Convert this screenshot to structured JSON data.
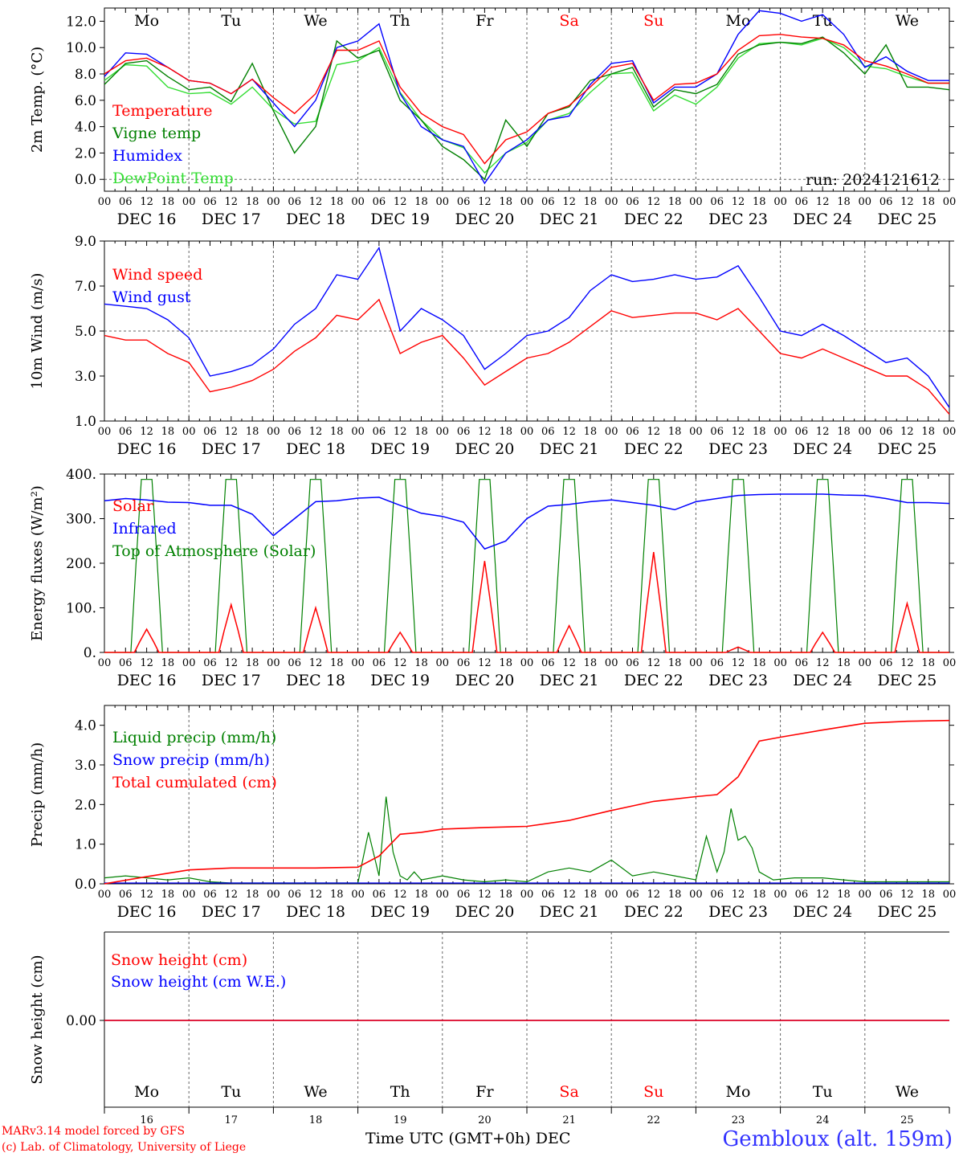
{
  "days": [
    "DEC 16",
    "DEC 17",
    "DEC 18",
    "DEC 19",
    "DEC 20",
    "DEC 21",
    "DEC 22",
    "DEC 23",
    "DEC 24",
    "DEC 25"
  ],
  "weekdays": [
    "Mo",
    "Tu",
    "We",
    "Th",
    "Fr",
    "Sa",
    "Su",
    "Mo",
    "Tu",
    "We"
  ],
  "weekday_colors": [
    "#000000",
    "#000000",
    "#000000",
    "#000000",
    "#000000",
    "#ff0000",
    "#ff0000",
    "#000000",
    "#000000",
    "#000000"
  ],
  "day_numbers": [
    "16",
    "17",
    "18",
    "19",
    "20",
    "21",
    "22",
    "23",
    "24",
    "25"
  ],
  "hour_ticks": [
    "00",
    "06",
    "12",
    "18"
  ],
  "hour_end": "00",
  "footer": {
    "model": "MARv3.14 model forced by GFS",
    "lab": "(c) Lab. of Climatology, University of Liege",
    "xlabel": "Time UTC (GMT+0h) DEC",
    "station": "Gembloux (alt. 159m)"
  },
  "colors": {
    "red": "#ff0000",
    "green": "#008000",
    "blue": "#0000ff",
    "lightgreen": "#33dd33",
    "axis": "#000000",
    "grid": "#666666"
  },
  "chart_data": [
    {
      "type": "line",
      "ylabel": "2m Temp. (°C)",
      "ylim": [
        -0.9,
        13.0
      ],
      "yticks": [
        0.0,
        2.0,
        4.0,
        6.0,
        8.0,
        10.0,
        12.0
      ],
      "ytick_labels": [
        "0.0",
        "2.0",
        "4.0",
        "6.0",
        "8.0",
        "10.0",
        "12.0"
      ],
      "hline": 0.0,
      "annotation": "run: 2024121612",
      "x_hours": [
        0,
        6,
        12,
        18,
        24,
        30,
        36,
        42,
        48,
        54,
        60,
        66,
        72,
        78,
        84,
        90,
        96,
        102,
        108,
        114,
        120,
        126,
        132,
        138,
        144,
        150,
        156,
        162,
        168,
        174,
        180,
        186,
        192,
        198,
        204,
        210,
        216,
        222,
        228,
        234,
        240
      ],
      "series": [
        {
          "name": "Temperature",
          "color": "red",
          "values": [
            8.0,
            9.0,
            9.2,
            8.5,
            7.5,
            7.3,
            6.5,
            7.6,
            6.2,
            5.0,
            6.5,
            9.8,
            9.8,
            10.5,
            7.0,
            5.0,
            4.0,
            3.4,
            1.2,
            3.0,
            3.6,
            5.0,
            5.6,
            7.0,
            8.5,
            8.8,
            6.0,
            7.2,
            7.3,
            8.0,
            9.8,
            10.9,
            11.0,
            10.8,
            10.7,
            10.2,
            9.0,
            8.6,
            8.0,
            7.3,
            7.3
          ]
        },
        {
          "name": "Vigne temp",
          "color": "green",
          "values": [
            7.2,
            8.8,
            9.0,
            7.8,
            6.8,
            7.0,
            5.9,
            8.8,
            5.2,
            2.0,
            4.0,
            10.5,
            9.2,
            9.8,
            6.0,
            4.5,
            2.5,
            1.5,
            0.0,
            4.5,
            2.5,
            5.0,
            5.5,
            7.5,
            8.0,
            8.5,
            5.5,
            6.8,
            6.5,
            7.2,
            9.5,
            10.2,
            10.4,
            10.3,
            10.8,
            9.6,
            8.0,
            10.2,
            7.0,
            7.0,
            6.8
          ]
        },
        {
          "name": "Humidex",
          "color": "blue",
          "values": [
            7.8,
            9.6,
            9.5,
            8.5,
            7.5,
            7.3,
            6.5,
            7.6,
            5.8,
            4.0,
            6.0,
            10.0,
            10.5,
            11.8,
            6.5,
            4.0,
            3.0,
            2.5,
            -0.3,
            2.0,
            3.0,
            4.5,
            4.8,
            7.2,
            8.8,
            9.0,
            5.8,
            7.0,
            7.0,
            8.0,
            11.0,
            12.8,
            12.6,
            12.0,
            12.5,
            11.0,
            8.5,
            9.3,
            8.2,
            7.5,
            7.5
          ]
        },
        {
          "name": "DewPoint Temp",
          "color": "lightgreen",
          "values": [
            7.5,
            8.7,
            8.6,
            7.0,
            6.5,
            6.6,
            5.7,
            7.0,
            5.3,
            4.2,
            4.4,
            8.7,
            9.0,
            10.0,
            6.6,
            4.5,
            3.0,
            2.4,
            0.5,
            2.0,
            2.8,
            4.5,
            5.0,
            6.6,
            8.0,
            8.1,
            5.2,
            6.4,
            5.7,
            7.0,
            9.2,
            10.3,
            10.4,
            10.2,
            10.7,
            10.0,
            8.6,
            8.4,
            7.8,
            7.3,
            7.3
          ]
        }
      ]
    },
    {
      "type": "line",
      "ylabel": "10m Wind (m/s)",
      "ylim": [
        1.0,
        9.0
      ],
      "yticks": [
        1.0,
        3.0,
        5.0,
        7.0,
        9.0
      ],
      "ytick_labels": [
        "1.0",
        "3.0",
        "5.0",
        "7.0",
        "9.0"
      ],
      "hline": 5.0,
      "x_hours": [
        0,
        6,
        12,
        18,
        24,
        30,
        36,
        42,
        48,
        54,
        60,
        66,
        72,
        78,
        84,
        90,
        96,
        102,
        108,
        114,
        120,
        126,
        132,
        138,
        144,
        150,
        156,
        162,
        168,
        174,
        180,
        186,
        192,
        198,
        204,
        210,
        216,
        222,
        228,
        234,
        240
      ],
      "series": [
        {
          "name": "Wind speed",
          "color": "red",
          "values": [
            4.8,
            4.6,
            4.6,
            4.0,
            3.6,
            2.3,
            2.5,
            2.8,
            3.3,
            4.1,
            4.7,
            5.7,
            5.5,
            6.4,
            4.0,
            4.5,
            4.8,
            3.8,
            2.6,
            3.2,
            3.8,
            4.0,
            4.5,
            5.2,
            5.9,
            5.6,
            5.7,
            5.8,
            5.8,
            5.5,
            6.0,
            5.0,
            4.0,
            3.8,
            4.2,
            3.8,
            3.4,
            3.0,
            3.0,
            2.4,
            1.3
          ]
        },
        {
          "name": "Wind gust",
          "color": "blue",
          "values": [
            6.2,
            6.1,
            6.0,
            5.5,
            4.7,
            3.0,
            3.2,
            3.5,
            4.2,
            5.3,
            6.0,
            7.5,
            7.3,
            8.7,
            5.0,
            6.0,
            5.5,
            4.8,
            3.3,
            4.0,
            4.8,
            5.0,
            5.6,
            6.8,
            7.5,
            7.2,
            7.3,
            7.5,
            7.3,
            7.4,
            7.9,
            6.5,
            5.0,
            4.8,
            5.3,
            4.8,
            4.2,
            3.6,
            3.8,
            3.0,
            1.6
          ]
        }
      ]
    },
    {
      "type": "line",
      "ylabel": "Energy fluxes (W/m²)",
      "ylim": [
        0,
        400
      ],
      "yticks": [
        0,
        100,
        200,
        300,
        400
      ],
      "ytick_labels": [
        "0.",
        "100.",
        "200.",
        "300.",
        "400."
      ],
      "solar_peaks": [
        52,
        107,
        100,
        45,
        205,
        60,
        225,
        12,
        45,
        110
      ],
      "toa_peak": 388,
      "infrared": {
        "x_hours": [
          0,
          6,
          12,
          18,
          24,
          30,
          36,
          42,
          48,
          54,
          60,
          66,
          72,
          78,
          84,
          90,
          96,
          102,
          108,
          114,
          120,
          126,
          132,
          138,
          144,
          150,
          156,
          162,
          168,
          174,
          180,
          186,
          192,
          198,
          204,
          210,
          216,
          222,
          228,
          234,
          240
        ],
        "values": [
          340,
          345,
          342,
          337,
          336,
          330,
          330,
          310,
          262,
          300,
          338,
          340,
          346,
          348,
          330,
          312,
          305,
          292,
          232,
          250,
          300,
          328,
          332,
          338,
          342,
          336,
          330,
          320,
          338,
          345,
          352,
          354,
          355,
          355,
          355,
          353,
          352,
          345,
          336,
          336,
          334
        ]
      },
      "series": [
        {
          "name": "Solar",
          "color": "red"
        },
        {
          "name": "Infrared",
          "color": "blue"
        },
        {
          "name": "Top of Atmosphere (Solar)",
          "color": "green"
        }
      ]
    },
    {
      "type": "line",
      "ylabel": "Precip (mm/h)",
      "ylim": [
        0.0,
        4.5
      ],
      "yticks": [
        0.0,
        1.0,
        2.0,
        3.0,
        4.0
      ],
      "ytick_labels": [
        "0.0",
        "1.0",
        "2.0",
        "3.0",
        "4.0"
      ],
      "series": [
        {
          "name": "Liquid precip (mm/h)",
          "color": "green",
          "x_hours": [
            0,
            6,
            12,
            18,
            24,
            30,
            36,
            42,
            48,
            54,
            60,
            66,
            72,
            75,
            78,
            80,
            82,
            84,
            86,
            88,
            90,
            96,
            102,
            108,
            114,
            120,
            126,
            132,
            138,
            144,
            150,
            156,
            162,
            168,
            171,
            174,
            176,
            178,
            180,
            182,
            184,
            186,
            190,
            196,
            204,
            210,
            216,
            222,
            228,
            234,
            240
          ],
          "values": [
            0.15,
            0.2,
            0.15,
            0.1,
            0.15,
            0.05,
            0.02,
            0.02,
            0.02,
            0.02,
            0.02,
            0.02,
            0.02,
            1.3,
            0.2,
            2.2,
            0.8,
            0.2,
            0.1,
            0.3,
            0.1,
            0.2,
            0.1,
            0.05,
            0.1,
            0.05,
            0.3,
            0.4,
            0.3,
            0.6,
            0.2,
            0.3,
            0.2,
            0.1,
            1.2,
            0.3,
            0.8,
            1.9,
            1.1,
            1.2,
            0.9,
            0.3,
            0.1,
            0.15,
            0.15,
            0.1,
            0.05,
            0.05,
            0.05,
            0.05,
            0.05
          ]
        },
        {
          "name": "Snow precip (mm/h)",
          "color": "blue",
          "x_hours": [
            0,
            240
          ],
          "values": [
            0.02,
            0.02
          ]
        },
        {
          "name": "Total cumulated (cm)",
          "color": "red",
          "x_hours": [
            0,
            12,
            24,
            36,
            48,
            60,
            72,
            78,
            84,
            90,
            96,
            108,
            120,
            132,
            144,
            156,
            168,
            174,
            180,
            186,
            192,
            204,
            216,
            228,
            240
          ],
          "values": [
            0.0,
            0.18,
            0.35,
            0.4,
            0.4,
            0.4,
            0.42,
            0.7,
            1.25,
            1.3,
            1.38,
            1.42,
            1.45,
            1.6,
            1.85,
            2.08,
            2.2,
            2.25,
            2.7,
            3.6,
            3.7,
            3.88,
            4.05,
            4.1,
            4.12
          ]
        }
      ]
    },
    {
      "type": "line",
      "ylabel": "Snow height (cm)",
      "yticks": [
        0.0
      ],
      "ytick_labels": [
        "0.00"
      ],
      "series": [
        {
          "name": "Snow height (cm)",
          "color": "red",
          "x_hours": [
            0,
            240
          ],
          "values": [
            0.0,
            0.0
          ]
        },
        {
          "name": "Snow height (cm W.E.)",
          "color": "blue",
          "x_hours": [
            0,
            240
          ],
          "values": [
            0.0,
            0.0
          ]
        }
      ]
    }
  ]
}
